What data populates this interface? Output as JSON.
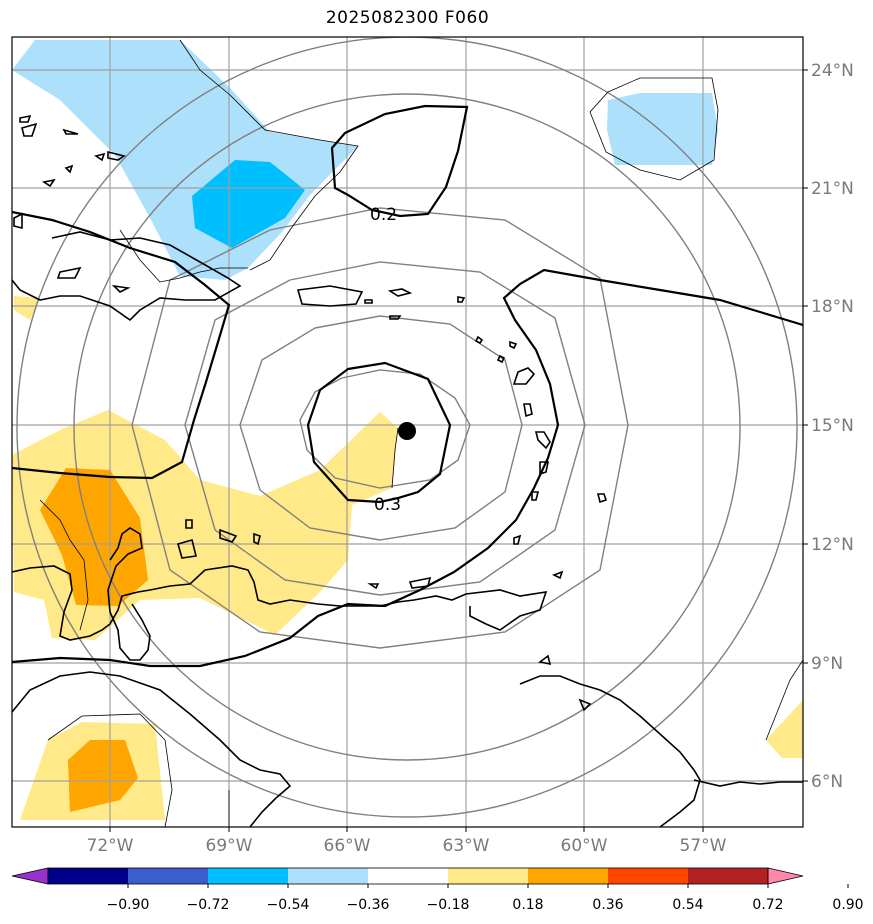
{
  "title": "2025082300 F060",
  "map": {
    "lat_labels": [
      "24°N",
      "21°N",
      "18°N",
      "15°N",
      "12°N",
      "9°N",
      "6°N"
    ],
    "lon_labels": [
      "72°W",
      "69°W",
      "66°W",
      "63°W",
      "60°W",
      "57°W"
    ],
    "contour_labels": [
      "0.2",
      "0.3"
    ],
    "storm_center_marker": "filled-circle",
    "colors": {
      "light_blue": "#ade0fb",
      "blue": "#00bfff",
      "light_yellow": "#ffe989",
      "orange": "#ffa500",
      "coast": "#000000",
      "grid": "#a0a0a0",
      "range_ring": "#808080"
    }
  },
  "colorbar": {
    "ticks": [
      "−0.90",
      "−0.72",
      "−0.54",
      "−0.36",
      "−0.18",
      "0.18",
      "0.36",
      "0.54",
      "0.72",
      "0.90"
    ],
    "colors": [
      "#9932cc",
      "#00008b",
      "#3a5fcd",
      "#00bfff",
      "#ade0fb",
      "#ffffff",
      "#ffe989",
      "#ffa500",
      "#ff4500",
      "#b22222",
      "#ff88aa"
    ]
  }
}
